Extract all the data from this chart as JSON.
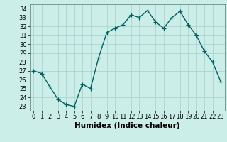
{
  "x": [
    0,
    1,
    2,
    3,
    4,
    5,
    6,
    7,
    8,
    9,
    10,
    11,
    12,
    13,
    14,
    15,
    16,
    17,
    18,
    19,
    20,
    21,
    22,
    23
  ],
  "y": [
    27.0,
    26.7,
    25.2,
    23.8,
    23.2,
    23.0,
    25.5,
    25.0,
    28.5,
    31.3,
    31.8,
    32.2,
    33.3,
    33.0,
    33.8,
    32.5,
    31.8,
    33.0,
    33.7,
    32.2,
    31.0,
    29.2,
    28.0,
    25.8
  ],
  "line_color": "#006060",
  "marker": "+",
  "marker_size": 4,
  "bg_color": "#cceee8",
  "grid_color": "#aacccc",
  "xlabel": "Humidex (Indice chaleur)",
  "ylim": [
    22.5,
    34.5
  ],
  "xlim": [
    -0.5,
    23.5
  ],
  "yticks": [
    23,
    24,
    25,
    26,
    27,
    28,
    29,
    30,
    31,
    32,
    33,
    34
  ],
  "xticks": [
    0,
    1,
    2,
    3,
    4,
    5,
    6,
    7,
    8,
    9,
    10,
    11,
    12,
    13,
    14,
    15,
    16,
    17,
    18,
    19,
    20,
    21,
    22,
    23
  ],
  "tick_fontsize": 6,
  "xlabel_fontsize": 7.5,
  "linewidth": 1.0
}
